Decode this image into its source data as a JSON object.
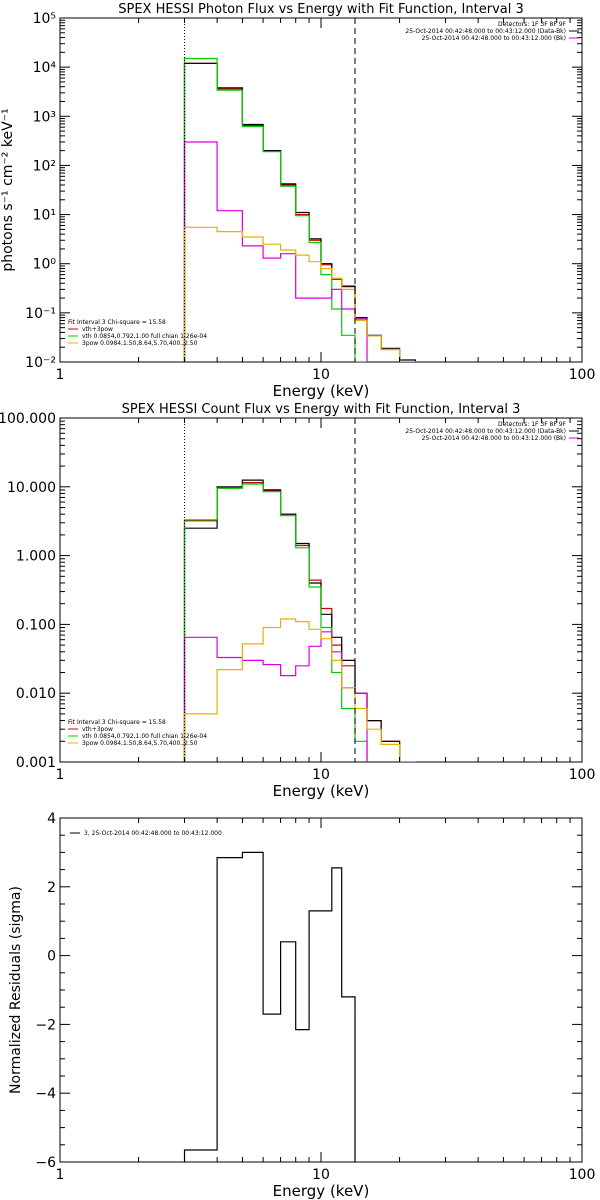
{
  "chart_data": [
    {
      "type": "line",
      "title": "SPEX HESSI Photon Flux vs Energy with Fit Function, Interval 3",
      "xlabel": "Energy (keV)",
      "ylabel": "photons s⁻¹ cm⁻² keV⁻¹",
      "xscale": "log",
      "yscale": "log",
      "xlim": [
        1,
        100
      ],
      "ylim": [
        0.01,
        100000
      ],
      "x_ticks": [
        {
          "v": 1,
          "label": "1"
        },
        {
          "v": 10,
          "label": "10"
        },
        {
          "v": 100,
          "label": "100"
        }
      ],
      "y_ticks": [
        {
          "v": 0.01,
          "label": "10⁻²"
        },
        {
          "v": 0.1,
          "label": "10⁻¹"
        },
        {
          "v": 1,
          "label": "10⁰"
        },
        {
          "v": 10,
          "label": "10¹"
        },
        {
          "v": 100,
          "label": "10²"
        },
        {
          "v": 1000,
          "label": "10³"
        },
        {
          "v": 10000,
          "label": "10⁴"
        },
        {
          "v": 100000,
          "label": "10⁵"
        }
      ],
      "vlines": [
        {
          "x": 3.0,
          "style": "dotted"
        },
        {
          "x": 13.5,
          "style": "dashed"
        }
      ],
      "legend_top_right": [
        {
          "text": "Detectors: 1F 3F 8F 9F",
          "color": "#000000"
        },
        {
          "text": "25-Oct-2014 00:42:48.000 to 00:43:12.000 (Data-Bk)",
          "color": "#000000"
        },
        {
          "text": "25-Oct-2014 00:42:48.000 to 00:43:12.000 (Bk)",
          "color": "#dd00dd"
        }
      ],
      "legend_bottom_left": [
        {
          "text": "Fit Interval 3   Chi-square = 15.58",
          "color": "#000000"
        },
        {
          "text": "vth+3pow",
          "color": "#d00000"
        },
        {
          "text": "vth 0.0854,0.792,1.00  full chian 1.26e-04",
          "color": "#00cc00"
        },
        {
          "text": "3pow 0.0984,1.50,8.64,5.70,400.,2.50",
          "color": "#e8b000"
        }
      ],
      "edges": [
        3,
        4,
        5,
        6,
        7,
        8,
        9,
        10,
        11,
        12,
        13.5,
        15,
        17,
        20,
        23
      ],
      "series": [
        {
          "key": "total",
          "color": "#d00000",
          "values": [
            12000,
            3600,
            650,
            200,
            40,
            10,
            3.0,
            0.95,
            0.48,
            0.34,
            0.075,
            0.034,
            0.018,
            0.01
          ]
        },
        {
          "key": "data",
          "color": "#000000",
          "values": [
            12000,
            3800,
            680,
            200,
            42,
            11,
            3.2,
            1.0,
            0.5,
            0.35,
            0.08,
            0.035,
            0.019,
            0.011
          ]
        },
        {
          "key": "vth",
          "color": "#00cc00",
          "values": [
            15000,
            3400,
            620,
            190,
            38,
            9.5,
            2.7,
            0.6,
            0.12,
            0.035,
            0.01
          ]
        },
        {
          "key": "bk",
          "color": "#dd00dd",
          "values": [
            300,
            12,
            2.3,
            1.3,
            1.6,
            0.2,
            0.2,
            0.2,
            0.3,
            0.12,
            0.075
          ]
        },
        {
          "key": "3pow",
          "color": "#e8b000",
          "values": [
            5.5,
            4.5,
            3.5,
            2.5,
            1.9,
            1.5,
            1.1,
            0.8,
            0.5,
            0.3,
            0.07,
            0.034,
            0.018,
            0.01
          ]
        }
      ]
    },
    {
      "type": "line",
      "title": "SPEX HESSI Count Flux vs Energy with Fit Function, Interval 3",
      "xlabel": "Energy (keV)",
      "ylabel": "",
      "xscale": "log",
      "yscale": "log",
      "xlim": [
        1,
        100
      ],
      "ylim": [
        0.001,
        100
      ],
      "x_ticks": [
        {
          "v": 1,
          "label": "1"
        },
        {
          "v": 10,
          "label": "10"
        },
        {
          "v": 100,
          "label": "100"
        }
      ],
      "y_ticks": [
        {
          "v": 0.001,
          "label": "0.001"
        },
        {
          "v": 0.01,
          "label": "0.010"
        },
        {
          "v": 0.1,
          "label": "0.100"
        },
        {
          "v": 1,
          "label": "1.000"
        },
        {
          "v": 10,
          "label": "10.000"
        },
        {
          "v": 100,
          "label": "100.000"
        }
      ],
      "vlines": [
        {
          "x": 3.0,
          "style": "dotted"
        },
        {
          "x": 13.5,
          "style": "dashed"
        }
      ],
      "legend_top_right": [
        {
          "text": "Detectors: 1F 3F 8F 9F",
          "color": "#000000"
        },
        {
          "text": "25-Oct-2014 00:42:48.000 to 00:43:12.000 (Data-Bk)",
          "color": "#000000"
        },
        {
          "text": "25-Oct-2014 00:42:48.000 to 00:43:12.000 (Bk)",
          "color": "#dd00dd"
        }
      ],
      "legend_bottom_left": [
        {
          "text": "Fit Interval 3   Chi-square = 15.58",
          "color": "#000000"
        },
        {
          "text": "vth+3pow",
          "color": "#d00000"
        },
        {
          "text": "vth 0.0854,0.792,1.00  full chian 1.26e-04",
          "color": "#00cc00"
        },
        {
          "text": "3pow 0.0984,1.50,8.64,5.70,400.,2.50",
          "color": "#e8b000"
        }
      ],
      "edges": [
        3,
        4,
        5,
        6,
        7,
        8,
        9,
        10,
        11,
        12,
        13.5,
        15,
        17,
        20,
        23
      ],
      "series": [
        {
          "key": "total",
          "color": "#d00000",
          "values": [
            3.2,
            9.6,
            11.5,
            8.8,
            4.0,
            1.4,
            0.44,
            0.17,
            0.05,
            0.025,
            0.01,
            0.004,
            0.002,
            0.001
          ]
        },
        {
          "key": "data",
          "color": "#000000",
          "values": [
            2.5,
            10.0,
            12.5,
            9.0,
            4.0,
            1.5,
            0.4,
            0.14,
            0.065,
            0.03,
            0.01,
            0.004,
            0.002,
            0.001
          ]
        },
        {
          "key": "vth",
          "color": "#00cc00",
          "values": [
            3.3,
            9.5,
            11.0,
            8.5,
            3.8,
            1.3,
            0.35,
            0.09,
            0.02,
            0.006,
            0.002
          ]
        },
        {
          "key": "bk",
          "color": "#dd00dd",
          "values": [
            0.065,
            0.033,
            0.03,
            0.026,
            0.018,
            0.025,
            0.048,
            0.078,
            0.04,
            0.012,
            0.01
          ]
        },
        {
          "key": "3pow",
          "color": "#e8b000",
          "values": [
            0.005,
            0.022,
            0.052,
            0.09,
            0.12,
            0.11,
            0.085,
            0.062,
            0.03,
            0.012,
            0.006,
            0.003,
            0.0018,
            0.001
          ]
        }
      ]
    },
    {
      "type": "line",
      "title": "",
      "xlabel": "Energy (keV)",
      "ylabel": "Normalized Residuals (sigma)",
      "xscale": "log",
      "yscale": "linear",
      "xlim": [
        1,
        100
      ],
      "ylim": [
        -6,
        4
      ],
      "x_ticks": [
        {
          "v": 1,
          "label": "1"
        },
        {
          "v": 10,
          "label": "10"
        },
        {
          "v": 100,
          "label": "100"
        }
      ],
      "y_ticks": [
        {
          "v": -6,
          "label": "−6"
        },
        {
          "v": -4,
          "label": "−4"
        },
        {
          "v": -2,
          "label": "−2"
        },
        {
          "v": 0,
          "label": "0"
        },
        {
          "v": 2,
          "label": "2"
        },
        {
          "v": 4,
          "label": "4"
        }
      ],
      "vlines": [],
      "legend_top_left": [
        {
          "text": "3, 25-Oct-2014 00:42:48.000 to 00:43:12.000",
          "color": "#000000"
        }
      ],
      "edges": [
        3,
        4,
        5,
        6,
        7,
        8,
        9,
        10,
        11,
        12,
        13.5
      ],
      "series": [
        {
          "key": "residuals",
          "color": "#000000",
          "values": [
            -5.65,
            2.85,
            3.0,
            -1.7,
            0.4,
            -2.15,
            1.3,
            1.3,
            2.55,
            -1.2
          ]
        }
      ]
    }
  ]
}
